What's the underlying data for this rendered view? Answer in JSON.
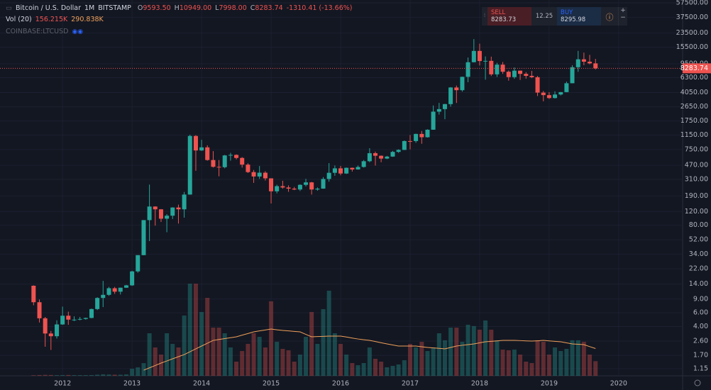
{
  "header": {
    "symbol": "Bitcoin / U.S. Dollar",
    "interval": "1M",
    "exchange": "BITSTAMP",
    "o_key": "O",
    "o": "9593.50",
    "h_key": "H",
    "h": "10949.00",
    "l_key": "L",
    "l": "7998.00",
    "c_key": "C",
    "c": "8283.74",
    "change": "-1310.41 (-13.66%)",
    "vol_label": "Vol (20)",
    "vol": "156.215K",
    "vol_ma": "290.838K",
    "compare": "COINBASE:LTCUSD"
  },
  "trade_widget": {
    "sell_label": "SELL",
    "sell": "8283.73",
    "spread": "12.25",
    "buy_label": "BUY",
    "buy": "8295.98"
  },
  "chart_data": {
    "type": "candlestick",
    "log_scale": true,
    "grid": true,
    "up_color": "#26a69a",
    "down_color": "#ef5350",
    "volume_ma_color": "#f0a05a",
    "xlim": [
      2011.1,
      2020.92
    ],
    "xticks": [
      2012,
      2013,
      2014,
      2015,
      2016,
      2017,
      2018,
      2019,
      2020
    ],
    "ylim": [
      0.93,
      62500
    ],
    "yticks": [
      {
        "value": 57500,
        "label": "57500.00"
      },
      {
        "value": 37500,
        "label": "37500.00"
      },
      {
        "value": 23500,
        "label": "23500.00"
      },
      {
        "value": 15500,
        "label": "15500.00"
      },
      {
        "value": 9500,
        "label": "9500.00"
      },
      {
        "value": 6300,
        "label": "6300.00"
      },
      {
        "value": 4050,
        "label": "4050.00"
      },
      {
        "value": 2650,
        "label": "2650.00"
      },
      {
        "value": 1750,
        "label": "1750.00"
      },
      {
        "value": 1150,
        "label": "1150.00"
      },
      {
        "value": 750,
        "label": "750.00"
      },
      {
        "value": 470,
        "label": "470.00"
      },
      {
        "value": 310,
        "label": "310.00"
      },
      {
        "value": 190,
        "label": "190.00"
      },
      {
        "value": 120,
        "label": "120.00"
      },
      {
        "value": 80,
        "label": "80.00"
      },
      {
        "value": 52,
        "label": "52.00"
      },
      {
        "value": 34,
        "label": "34.00"
      },
      {
        "value": 22,
        "label": "22.00"
      },
      {
        "value": 14,
        "label": "14.00"
      },
      {
        "value": 9,
        "label": "9.00"
      },
      {
        "value": 6,
        "label": "6.00"
      },
      {
        "value": 4,
        "label": "4.00"
      },
      {
        "value": 2.6,
        "label": "2.60"
      },
      {
        "value": 1.7,
        "label": "1.70"
      },
      {
        "value": 1.15,
        "label": "1.15"
      }
    ],
    "last_price": {
      "value": 8283.74,
      "label": "8283.74"
    },
    "volume_lim": [
      0,
      4000
    ],
    "x": [
      2011.583,
      2011.667,
      2011.75,
      2011.833,
      2011.917,
      2012,
      2012.083,
      2012.167,
      2012.25,
      2012.333,
      2012.417,
      2012.5,
      2012.583,
      2012.667,
      2012.75,
      2012.833,
      2012.917,
      2013,
      2013.083,
      2013.167,
      2013.25,
      2013.333,
      2013.417,
      2013.5,
      2013.583,
      2013.667,
      2013.75,
      2013.833,
      2013.917,
      2014,
      2014.083,
      2014.167,
      2014.25,
      2014.333,
      2014.417,
      2014.5,
      2014.583,
      2014.667,
      2014.75,
      2014.833,
      2014.917,
      2015,
      2015.083,
      2015.167,
      2015.25,
      2015.333,
      2015.417,
      2015.5,
      2015.583,
      2015.667,
      2015.75,
      2015.833,
      2015.917,
      2016,
      2016.083,
      2016.167,
      2016.25,
      2016.333,
      2016.417,
      2016.5,
      2016.583,
      2016.667,
      2016.75,
      2016.833,
      2016.917,
      2017,
      2017.083,
      2017.167,
      2017.25,
      2017.333,
      2017.417,
      2017.5,
      2017.583,
      2017.667,
      2017.75,
      2017.833,
      2017.917,
      2018,
      2018.083,
      2018.167,
      2018.25,
      2018.333,
      2018.417,
      2018.5,
      2018.583,
      2018.667,
      2018.75,
      2018.833,
      2018.917,
      2019,
      2019.083,
      2019.167,
      2019.25,
      2019.333,
      2019.417,
      2019.5,
      2019.583,
      2019.667
    ],
    "open": [
      13.35,
      8.2,
      5.1,
      3.25,
      3.0,
      4.25,
      5.5,
      4.9,
      4.9,
      5.0,
      5.15,
      6.7,
      9.3,
      10.2,
      12.4,
      11.2,
      12.6,
      13.5,
      20.4,
      33,
      93,
      139,
      128,
      97,
      106,
      135,
      128,
      198,
      1120,
      730,
      800,
      550,
      450,
      445,
      630,
      640,
      585,
      480,
      385,
      338,
      378,
      320,
      218,
      254,
      244,
      236,
      230,
      264,
      284,
      230,
      236,
      314,
      377,
      430,
      369,
      437,
      416,
      448,
      531,
      673,
      624,
      574,
      609,
      700,
      742,
      964,
      963,
      1190,
      1079,
      1348,
      2300,
      2480,
      2875,
      4700,
      4340,
      6440,
      9920,
      13860,
      10270,
      10330,
      6930,
      9240,
      7490,
      6390,
      7730,
      7030,
      6630,
      6370,
      4040,
      3750,
      3440,
      3820,
      4100,
      5330,
      8560,
      10820,
      10080,
      9593.5
    ],
    "high": [
      13.5,
      8.9,
      5.3,
      3.5,
      4.8,
      7.2,
      6.2,
      5.4,
      5.3,
      5.2,
      6.8,
      9.5,
      15.4,
      12.9,
      12.9,
      12.6,
      13.7,
      20.8,
      33,
      93,
      266,
      140,
      129,
      111,
      136,
      147,
      214,
      1163,
      1150,
      1000,
      850,
      715,
      550,
      640,
      680,
      650,
      600,
      500,
      410,
      460,
      395,
      320,
      265,
      298,
      260,
      248,
      268,
      315,
      288,
      245,
      332,
      502,
      468,
      462,
      440,
      440,
      467,
      550,
      780,
      705,
      630,
      622,
      720,
      755,
      980,
      1150,
      1200,
      1300,
      1365,
      2760,
      2980,
      2900,
      4750,
      4980,
      6470,
      11400,
      19666,
      17170,
      11780,
      11700,
      9760,
      9990,
      7760,
      8500,
      7760,
      7410,
      7680,
      6600,
      4240,
      4100,
      4200,
      4110,
      5600,
      9090,
      13880,
      13180,
      12330,
      10949
    ],
    "low": [
      7.5,
      4.5,
      2.2,
      2.0,
      2.8,
      4.2,
      4.2,
      4.7,
      4.8,
      4.9,
      5.1,
      6.5,
      7.1,
      9.9,
      10.5,
      10.3,
      12.5,
      13.3,
      19.6,
      33,
      50,
      79,
      88,
      65,
      96,
      84,
      100,
      197,
      400,
      720,
      540,
      440,
      340,
      430,
      540,
      560,
      440,
      375,
      280,
      315,
      300,
      152,
      205,
      236,
      215,
      226,
      220,
      252,
      198,
      222,
      235,
      290,
      345,
      350,
      364,
      391,
      414,
      440,
      515,
      467,
      515,
      565,
      604,
      681,
      739,
      755,
      915,
      890,
      1070,
      1345,
      2110,
      1840,
      2670,
      2970,
      4160,
      5500,
      9900,
      9000,
      5920,
      6600,
      6430,
      7030,
      5750,
      6070,
      5880,
      6100,
      6200,
      3650,
      3120,
      3350,
      3390,
      3710,
      4080,
      5330,
      7470,
      9080,
      9330,
      7998
    ],
    "close": [
      8.2,
      5.1,
      3.25,
      3.0,
      4.25,
      5.5,
      4.9,
      4.9,
      5.0,
      5.15,
      6.7,
      9.3,
      10.2,
      12.4,
      11.2,
      12.6,
      13.5,
      20.4,
      33,
      93,
      139,
      128,
      97,
      106,
      135,
      128,
      198,
      1120,
      730,
      800,
      550,
      450,
      445,
      630,
      640,
      585,
      480,
      385,
      338,
      378,
      320,
      218,
      254,
      244,
      236,
      230,
      264,
      284,
      230,
      236,
      314,
      377,
      430,
      369,
      437,
      416,
      448,
      531,
      673,
      624,
      574,
      609,
      700,
      742,
      964,
      963,
      1190,
      1079,
      1348,
      2300,
      2480,
      2875,
      4700,
      4340,
      6440,
      9920,
      13860,
      10270,
      10330,
      6930,
      9240,
      7490,
      6390,
      7730,
      7030,
      6630,
      6370,
      4040,
      3750,
      3440,
      3820,
      4100,
      5330,
      8560,
      10820,
      10080,
      9590,
      8283.74
    ],
    "volume": [
      6,
      8,
      10,
      9,
      7,
      8,
      9,
      7,
      7,
      7,
      8,
      12,
      16,
      14,
      12,
      12,
      15,
      75,
      90,
      135,
      453,
      302,
      226,
      453,
      340,
      302,
      642,
      981,
      981,
      679,
      830,
      513,
      513,
      453,
      302,
      151,
      264,
      340,
      453,
      415,
      302,
      793,
      362,
      287,
      272,
      151,
      226,
      415,
      679,
      340,
      710,
      906,
      453,
      340,
      226,
      136,
      113,
      136,
      302,
      181,
      151,
      91,
      106,
      121,
      166,
      340,
      302,
      362,
      264,
      302,
      453,
      378,
      513,
      513,
      362,
      544,
      529,
      491,
      589,
      491,
      378,
      279,
      272,
      279,
      226,
      151,
      136,
      378,
      362,
      226,
      302,
      264,
      287,
      378,
      378,
      362,
      226,
      156.215
    ],
    "volume_ma": [
      null,
      null,
      null,
      null,
      null,
      null,
      null,
      null,
      null,
      null,
      null,
      null,
      null,
      null,
      null,
      null,
      null,
      null,
      null,
      60,
      85,
      110,
      136,
      158,
      181,
      204,
      226,
      256,
      287,
      317,
      347,
      377,
      387,
      396,
      406,
      415,
      433,
      450,
      468,
      478,
      488,
      498,
      490,
      483,
      478,
      473,
      468,
      441,
      415,
      418,
      420,
      423,
      423,
      423,
      413,
      402,
      392,
      384,
      377,
      365,
      352,
      340,
      328,
      317,
      317,
      317,
      317,
      309,
      302,
      297,
      292,
      287,
      302,
      317,
      325,
      332,
      340,
      351,
      362,
      367,
      372,
      377,
      377,
      377,
      375,
      372,
      370,
      373,
      377,
      372,
      367,
      362,
      351,
      340,
      336,
      332,
      311,
      290.838
    ]
  }
}
